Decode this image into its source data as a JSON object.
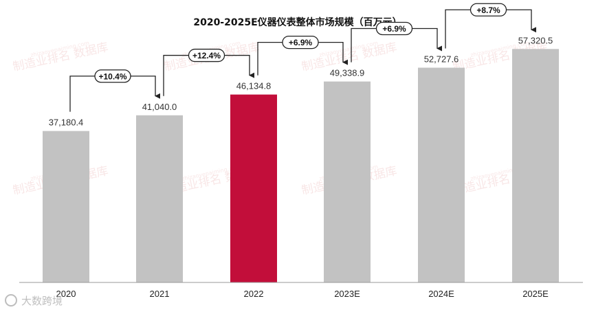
{
  "chart_data": {
    "type": "bar",
    "title": "2020-2025E仪器仪表整体市场规模（百万元）",
    "xlabel": "",
    "ylabel": "",
    "categories": [
      "2020",
      "2021",
      "2022",
      "2023E",
      "2024E",
      "2025E"
    ],
    "values": [
      37180.4,
      41040.0,
      46134.8,
      49338.9,
      52727.6,
      57320.5
    ],
    "value_labels": [
      "37,180.4",
      "41,040.0",
      "46,134.8",
      "49,338.9",
      "52,727.6",
      "57,320.5"
    ],
    "growth_labels": [
      "+10.4%",
      "+12.4%",
      "+6.9%",
      "+6.9%",
      "+8.7%"
    ],
    "ylim": [
      0,
      66000
    ],
    "highlight_index": 2,
    "colors": {
      "bar": "#c2c2c2",
      "highlight": "#c20e3a",
      "connector": "#222222",
      "axis": "#999999"
    },
    "grid": false,
    "legend": "none"
  },
  "watermark": {
    "text": "制造业排名 数据库",
    "url": "zhizaoyepaiming.com",
    "logo": "大数跨境"
  }
}
